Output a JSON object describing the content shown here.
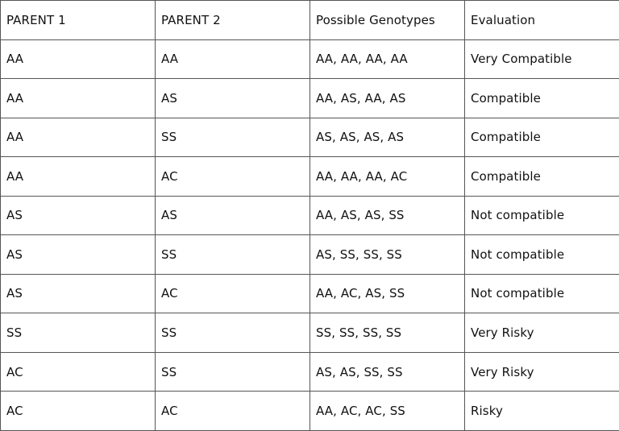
{
  "table": {
    "headers": [
      "PARENT 1",
      "PARENT 2",
      "Possible Genotypes",
      "Evaluation"
    ],
    "rows": [
      [
        "AA",
        "AA",
        "AA, AA, AA, AA",
        "Very Compatible"
      ],
      [
        "AA",
        "AS",
        "AA, AS, AA, AS",
        "Compatible"
      ],
      [
        "AA",
        "SS",
        "AS, AS, AS, AS",
        "Compatible"
      ],
      [
        "AA",
        "AC",
        "AA, AA, AA, AC",
        "Compatible"
      ],
      [
        "AS",
        "AS",
        "AA, AS, AS, SS",
        "Not compatible"
      ],
      [
        "AS",
        "SS",
        "AS, SS, SS, SS",
        "Not compatible"
      ],
      [
        "AS",
        "AC",
        "AA, AC, AS, SS",
        "Not compatible"
      ],
      [
        "SS",
        "SS",
        "SS, SS, SS, SS",
        "Very Risky"
      ],
      [
        "AC",
        "SS",
        "AS, AS, SS, SS",
        "Very Risky"
      ],
      [
        "AC",
        "AC",
        "AA, AC, AC, SS",
        "Risky"
      ]
    ]
  }
}
